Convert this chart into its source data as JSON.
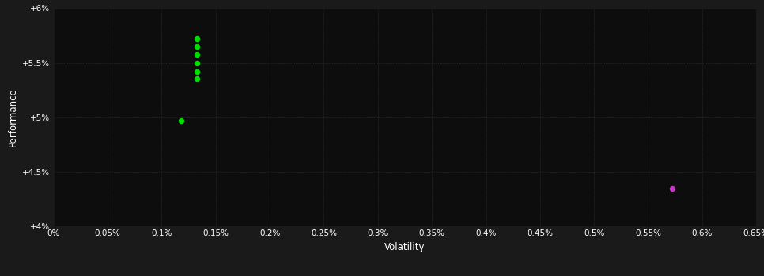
{
  "background_color": "#1a1a1a",
  "plot_bg_color": "#0d0d0d",
  "grid_color": "#3a3a3a",
  "text_color": "#ffffff",
  "xlabel": "Volatility",
  "ylabel": "Performance",
  "xlim": [
    0,
    0.0065
  ],
  "ylim": [
    0.04,
    0.06
  ],
  "xtick_vals": [
    0.0,
    0.0005,
    0.001,
    0.0015,
    0.002,
    0.0025,
    0.003,
    0.0035,
    0.004,
    0.0045,
    0.005,
    0.0055,
    0.006,
    0.0065
  ],
  "xtick_labels": [
    "0%",
    "0.05%",
    "0.1%",
    "0.15%",
    "0.2%",
    "0.25%",
    "0.3%",
    "0.35%",
    "0.4%",
    "0.45%",
    "0.5%",
    "0.55%",
    "0.6%",
    "0.65%"
  ],
  "ytick_vals": [
    0.04,
    0.045,
    0.05,
    0.055,
    0.06
  ],
  "ytick_labels": [
    "+4%",
    "+4.5%",
    "+5%",
    "+5.5%",
    "+6%"
  ],
  "green_points": [
    [
      0.00133,
      0.0572
    ],
    [
      0.00133,
      0.0565
    ],
    [
      0.00133,
      0.0558
    ],
    [
      0.00133,
      0.055
    ],
    [
      0.00133,
      0.0542
    ],
    [
      0.00133,
      0.0535
    ],
    [
      0.00118,
      0.0497
    ]
  ],
  "magenta_points": [
    [
      0.00572,
      0.0435
    ]
  ],
  "green_color": "#00dd00",
  "magenta_color": "#cc33cc",
  "marker_size": 28,
  "figsize": [
    9.66,
    3.5
  ],
  "dpi": 100
}
